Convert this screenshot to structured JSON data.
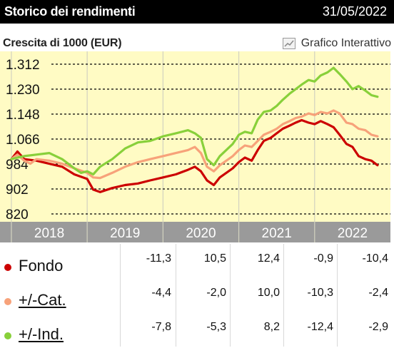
{
  "header": {
    "title": "Storico dei rendimenti",
    "date": "31/05/2022"
  },
  "subtitle": "Crescita di 1000 (EUR)",
  "interactive_label": "Grafico Interattivo",
  "colors": {
    "fondo": "#cc0000",
    "cat": "#f7a27a",
    "ind": "#88d03a",
    "plot_bg": "#fffbc4",
    "axis_band": "#9a9a9a"
  },
  "chart_data": {
    "type": "line",
    "ylim": [
      820,
      1312
    ],
    "yticks": [
      820,
      902,
      984,
      1066,
      1148,
      1230,
      1312
    ],
    "ytick_labels": [
      "820",
      "902",
      "984",
      "1.066",
      "1.148",
      "1.230",
      "1.312"
    ],
    "xlim": [
      2017.35,
      2022.5
    ],
    "xtick_labels": [
      {
        "year": 2018,
        "label": "2018"
      },
      {
        "year": 2019,
        "label": "2019"
      },
      {
        "year": 2020,
        "label": "2020"
      },
      {
        "year": 2021,
        "label": "2021"
      },
      {
        "year": 2022,
        "label": "2022"
      }
    ],
    "year_gridlines": [
      2017.5,
      2018.5,
      2019.5,
      2020.5,
      2021.5
    ],
    "grid": true,
    "series": [
      {
        "name": "Fondo",
        "color": "#cc0000",
        "points": [
          [
            2017.5,
            1000
          ],
          [
            2017.58,
            1025
          ],
          [
            2017.67,
            1000
          ],
          [
            2017.83,
            995
          ],
          [
            2018.0,
            985
          ],
          [
            2018.17,
            975
          ],
          [
            2018.33,
            950
          ],
          [
            2018.5,
            935
          ],
          [
            2018.58,
            900
          ],
          [
            2018.67,
            892
          ],
          [
            2018.83,
            905
          ],
          [
            2019.0,
            915
          ],
          [
            2019.17,
            920
          ],
          [
            2019.33,
            930
          ],
          [
            2019.5,
            940
          ],
          [
            2019.67,
            950
          ],
          [
            2019.83,
            965
          ],
          [
            2019.92,
            975
          ],
          [
            2020.0,
            960
          ],
          [
            2020.08,
            930
          ],
          [
            2020.17,
            915
          ],
          [
            2020.25,
            940
          ],
          [
            2020.42,
            970
          ],
          [
            2020.5,
            990
          ],
          [
            2020.58,
            1005
          ],
          [
            2020.67,
            995
          ],
          [
            2020.75,
            1030
          ],
          [
            2020.83,
            1060
          ],
          [
            2020.92,
            1070
          ],
          [
            2021.0,
            1085
          ],
          [
            2021.08,
            1100
          ],
          [
            2021.17,
            1110
          ],
          [
            2021.25,
            1120
          ],
          [
            2021.33,
            1128
          ],
          [
            2021.42,
            1120
          ],
          [
            2021.5,
            1115
          ],
          [
            2021.58,
            1125
          ],
          [
            2021.67,
            1115
          ],
          [
            2021.75,
            1105
          ],
          [
            2021.83,
            1080
          ],
          [
            2021.92,
            1050
          ],
          [
            2022.0,
            1040
          ],
          [
            2022.08,
            1010
          ],
          [
            2022.17,
            1000
          ],
          [
            2022.25,
            995
          ],
          [
            2022.33,
            980
          ]
        ]
      },
      {
        "name": "+/-Cat.",
        "color": "#f7a27a",
        "points": [
          [
            2017.5,
            1000
          ],
          [
            2017.58,
            1015
          ],
          [
            2017.67,
            995
          ],
          [
            2017.75,
            985
          ],
          [
            2017.83,
            1000
          ],
          [
            2018.0,
            995
          ],
          [
            2018.17,
            985
          ],
          [
            2018.33,
            970
          ],
          [
            2018.5,
            955
          ],
          [
            2018.58,
            940
          ],
          [
            2018.67,
            938
          ],
          [
            2018.83,
            955
          ],
          [
            2019.0,
            975
          ],
          [
            2019.17,
            990
          ],
          [
            2019.33,
            1000
          ],
          [
            2019.5,
            1010
          ],
          [
            2019.67,
            1020
          ],
          [
            2019.83,
            1030
          ],
          [
            2019.92,
            1040
          ],
          [
            2020.0,
            1020
          ],
          [
            2020.08,
            975
          ],
          [
            2020.17,
            960
          ],
          [
            2020.25,
            980
          ],
          [
            2020.42,
            1010
          ],
          [
            2020.5,
            1030
          ],
          [
            2020.58,
            1045
          ],
          [
            2020.67,
            1040
          ],
          [
            2020.75,
            1060
          ],
          [
            2020.83,
            1080
          ],
          [
            2020.92,
            1090
          ],
          [
            2021.0,
            1100
          ],
          [
            2021.08,
            1115
          ],
          [
            2021.17,
            1125
          ],
          [
            2021.25,
            1135
          ],
          [
            2021.33,
            1140
          ],
          [
            2021.42,
            1150
          ],
          [
            2021.5,
            1145
          ],
          [
            2021.58,
            1155
          ],
          [
            2021.67,
            1150
          ],
          [
            2021.75,
            1160
          ],
          [
            2021.83,
            1150
          ],
          [
            2021.92,
            1120
          ],
          [
            2022.0,
            1115
          ],
          [
            2022.08,
            1100
          ],
          [
            2022.17,
            1095
          ],
          [
            2022.25,
            1080
          ],
          [
            2022.33,
            1075
          ]
        ]
      },
      {
        "name": "+/-Ind.",
        "color": "#88d03a",
        "points": [
          [
            2017.5,
            1000
          ],
          [
            2017.58,
            1005
          ],
          [
            2017.67,
            1010
          ],
          [
            2017.83,
            1015
          ],
          [
            2018.0,
            1020
          ],
          [
            2018.17,
            1000
          ],
          [
            2018.33,
            970
          ],
          [
            2018.42,
            955
          ],
          [
            2018.5,
            960
          ],
          [
            2018.58,
            950
          ],
          [
            2018.67,
            975
          ],
          [
            2018.83,
            1000
          ],
          [
            2019.0,
            1035
          ],
          [
            2019.17,
            1055
          ],
          [
            2019.33,
            1060
          ],
          [
            2019.5,
            1075
          ],
          [
            2019.67,
            1085
          ],
          [
            2019.83,
            1095
          ],
          [
            2019.92,
            1085
          ],
          [
            2020.0,
            1070
          ],
          [
            2020.08,
            1000
          ],
          [
            2020.17,
            980
          ],
          [
            2020.25,
            1010
          ],
          [
            2020.42,
            1050
          ],
          [
            2020.5,
            1080
          ],
          [
            2020.58,
            1090
          ],
          [
            2020.67,
            1085
          ],
          [
            2020.75,
            1130
          ],
          [
            2020.83,
            1155
          ],
          [
            2020.92,
            1160
          ],
          [
            2021.0,
            1175
          ],
          [
            2021.08,
            1195
          ],
          [
            2021.17,
            1215
          ],
          [
            2021.25,
            1230
          ],
          [
            2021.33,
            1245
          ],
          [
            2021.42,
            1260
          ],
          [
            2021.5,
            1255
          ],
          [
            2021.58,
            1275
          ],
          [
            2021.67,
            1285
          ],
          [
            2021.75,
            1300
          ],
          [
            2021.83,
            1280
          ],
          [
            2021.92,
            1255
          ],
          [
            2022.0,
            1230
          ],
          [
            2022.08,
            1240
          ],
          [
            2022.17,
            1225
          ],
          [
            2022.25,
            1210
          ],
          [
            2022.33,
            1205
          ]
        ]
      }
    ]
  },
  "table": {
    "rows": [
      {
        "label": "Fondo",
        "link": false,
        "color": "#cc0000",
        "values": [
          "-11,3",
          "10,5",
          "12,4",
          "-0,9",
          "-10,4"
        ]
      },
      {
        "label": "+/-Cat.",
        "link": true,
        "color": "#f7a27a",
        "values": [
          "-4,4",
          "-2,0",
          "10,0",
          "-10,3",
          "-2,4"
        ]
      },
      {
        "label": "+/-Ind.",
        "link": true,
        "color": "#88d03a",
        "values": [
          "-7,8",
          "-5,3",
          "8,2",
          "-12,4",
          "-2,9"
        ]
      }
    ]
  }
}
